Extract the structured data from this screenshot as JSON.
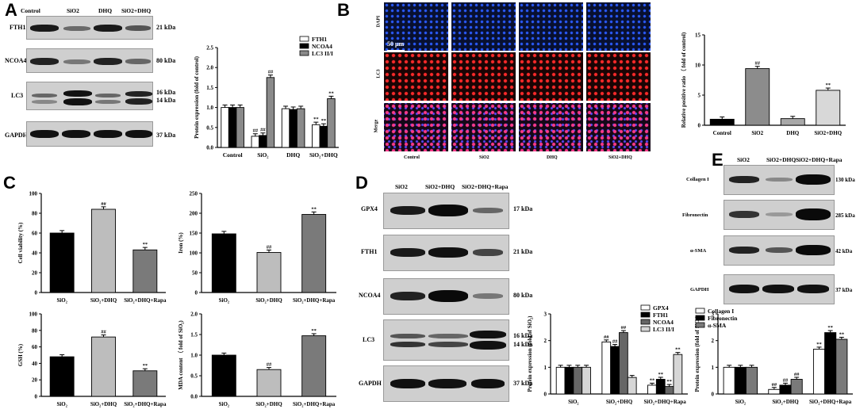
{
  "panels": {
    "A": "A",
    "B": "B",
    "C": "C",
    "D": "D",
    "E": "E"
  },
  "panelA": {
    "lanes": [
      "Control",
      "SiO2",
      "DHQ",
      "SiO2+DHQ"
    ],
    "rows": [
      {
        "name": "FTH1",
        "kda": "21 kDa"
      },
      {
        "name": "NCOA4",
        "kda": "80 kDa"
      },
      {
        "name": "LC3",
        "kda": "16 kDa",
        "kda2": "14 kDa"
      },
      {
        "name": "GAPDH",
        "kda": "37 kDa"
      }
    ]
  },
  "panelB": {
    "rows": [
      "DAPI",
      "LC3",
      "Merge"
    ],
    "cols": [
      "Control",
      "SiO2",
      "DHQ",
      "SiO2+DHQ"
    ],
    "scale": "50 μm"
  },
  "panelD": {
    "lanes": [
      "SiO2",
      "SiO2+DHQ",
      "SiO2+DHQ+Rapa"
    ],
    "rows": [
      {
        "name": "GPX4",
        "kda": "17 kDa"
      },
      {
        "name": "FTH1",
        "kda": "21 kDa"
      },
      {
        "name": "NCOA4",
        "kda": "80 kDa"
      },
      {
        "name": "LC3",
        "kda": "16 kDa",
        "kda2": "14 kDa"
      },
      {
        "name": "GAPDH",
        "kda": "37 kDa"
      }
    ]
  },
  "panelE": {
    "lanes": [
      "SiO2",
      "SiO2+DHQ",
      "SiO2+DHQ+Rapa"
    ],
    "rows": [
      {
        "name": "Collagen I",
        "kda": "130 kDa"
      },
      {
        "name": "Fibronectin",
        "kda": "285 kDa"
      },
      {
        "name": "α-SMA",
        "kda": "42 kDa"
      },
      {
        "name": "GAPDH",
        "kda": "37 kDa"
      }
    ]
  },
  "chart_data": [
    {
      "id": "A",
      "type": "bar",
      "ylabel": "Protein expression (fold of control)",
      "ylim": [
        0,
        2.5
      ],
      "yticks": [
        "0.0",
        "0.5",
        "1.0",
        "1.5",
        "2.0",
        "2.5"
      ],
      "categories": [
        "Control",
        "SiO₂",
        "DHQ",
        "SiO₂+DHQ"
      ],
      "series": [
        {
          "name": "FTH1",
          "values": [
            1.0,
            0.28,
            0.97,
            0.57
          ]
        },
        {
          "name": "NCOA4",
          "values": [
            1.0,
            0.3,
            0.95,
            0.53
          ]
        },
        {
          "name": "LC3 II/I",
          "values": [
            1.0,
            1.75,
            0.97,
            1.22
          ]
        }
      ],
      "annotations": [
        [
          "",
          "",
          ""
        ],
        [
          "##",
          "##",
          "##"
        ],
        [
          "",
          "",
          ""
        ],
        [
          "**",
          "**",
          "**"
        ]
      ],
      "legend": "top-right",
      "grid": false
    },
    {
      "id": "B",
      "type": "bar",
      "ylabel": "Relative positive ratio （ fold of control)",
      "ylim": [
        0,
        15
      ],
      "yticks": [
        "0",
        "5",
        "10",
        "15"
      ],
      "categories": [
        "Control",
        "SiO2",
        "DHQ",
        "SiO2+DHQ"
      ],
      "series": [
        {
          "values": [
            1.0,
            9.4,
            1.1,
            5.8
          ]
        }
      ],
      "annotations": [
        [
          "",
          "##",
          "",
          "**"
        ]
      ],
      "grid": false
    },
    {
      "id": "C1",
      "type": "bar",
      "ylabel": "Cell viability (%)",
      "ylim": [
        0,
        100
      ],
      "yticks": [
        "0",
        "20",
        "40",
        "60",
        "80",
        "100"
      ],
      "categories": [
        "SiO₂",
        "SiO₂+DHQ",
        "SiO₂+DHQ+Rapa"
      ],
      "series": [
        {
          "values": [
            60,
            84,
            43
          ]
        }
      ],
      "annotations": [
        [
          "",
          "##",
          "**"
        ]
      ],
      "grid": false
    },
    {
      "id": "C2",
      "type": "bar",
      "ylabel": "Iron (%)",
      "ylim": [
        0,
        250
      ],
      "yticks": [
        "0",
        "50",
        "100",
        "150",
        "200",
        "250"
      ],
      "categories": [
        "SiO₂",
        "SiO₂+DHQ",
        "SiO₂+DHQ+Rapa"
      ],
      "series": [
        {
          "values": [
            148,
            101,
            197
          ]
        }
      ],
      "annotations": [
        [
          "",
          "##",
          "**"
        ]
      ],
      "grid": false
    },
    {
      "id": "C3",
      "type": "bar",
      "ylabel": "GSH (%)",
      "ylim": [
        0,
        100
      ],
      "yticks": [
        "0",
        "20",
        "40",
        "60",
        "80",
        "100"
      ],
      "categories": [
        "SiO₂",
        "SiO₂+DHQ",
        "SiO₂+DHQ+Rapa"
      ],
      "series": [
        {
          "values": [
            48,
            72,
            31
          ]
        }
      ],
      "annotations": [
        [
          "",
          "##",
          "**"
        ]
      ],
      "grid": false
    },
    {
      "id": "C4",
      "type": "bar",
      "ylabel": "MDA content （ fold of SiO₂)",
      "ylim": [
        0,
        2.0
      ],
      "yticks": [
        "0.0",
        "0.5",
        "1.0",
        "1.5",
        "2.0"
      ],
      "categories": [
        "SiO₂",
        "SiO₂+DHQ",
        "SiO₂+DHQ+Rapa"
      ],
      "series": [
        {
          "values": [
            1.0,
            0.65,
            1.47
          ]
        }
      ],
      "annotations": [
        [
          "",
          "##",
          "**"
        ]
      ],
      "grid": false
    },
    {
      "id": "D",
      "type": "bar",
      "ylabel": "Protein expression (fold of SiO₂)",
      "ylim": [
        0,
        3
      ],
      "yticks": [
        "0",
        "1",
        "2",
        "3"
      ],
      "categories": [
        "SiO₂",
        "SiO₂+DHQ",
        "SiO₂+DHQ+Rapa"
      ],
      "series": [
        {
          "name": "GPX4",
          "values": [
            1.0,
            1.95,
            0.33
          ]
        },
        {
          "name": "FTH1",
          "values": [
            1.0,
            1.78,
            0.55
          ]
        },
        {
          "name": "NCOA4",
          "values": [
            1.0,
            2.3,
            0.28
          ]
        },
        {
          "name": "LC3 II/I",
          "values": [
            1.0,
            0.62,
            1.48
          ]
        }
      ],
      "annotations": [
        [
          "",
          "",
          "",
          ""
        ],
        [
          "##",
          "##",
          "##",
          ""
        ],
        [
          "**",
          "**",
          "**",
          "**"
        ]
      ],
      "legend": "top-right",
      "grid": false
    },
    {
      "id": "E",
      "type": "bar",
      "ylabel": "Protein expression (fold of SiO₂)",
      "ylim": [
        0,
        3
      ],
      "yticks": [
        "0",
        "1",
        "2",
        "3"
      ],
      "categories": [
        "SiO₂",
        "SiO₂+DHQ",
        "SiO₂+DHQ+Rapa"
      ],
      "series": [
        {
          "name": "Collagen I",
          "values": [
            1.0,
            0.17,
            1.68
          ]
        },
        {
          "name": "Fibronectin",
          "values": [
            1.0,
            0.33,
            2.3
          ]
        },
        {
          "name": "α-SMA",
          "values": [
            1.0,
            0.55,
            2.05
          ]
        }
      ],
      "annotations": [
        [
          "",
          "",
          ""
        ],
        [
          "##",
          "##",
          "##"
        ],
        [
          "**",
          "**",
          "**"
        ]
      ],
      "legend": "top-left",
      "grid": false
    }
  ]
}
